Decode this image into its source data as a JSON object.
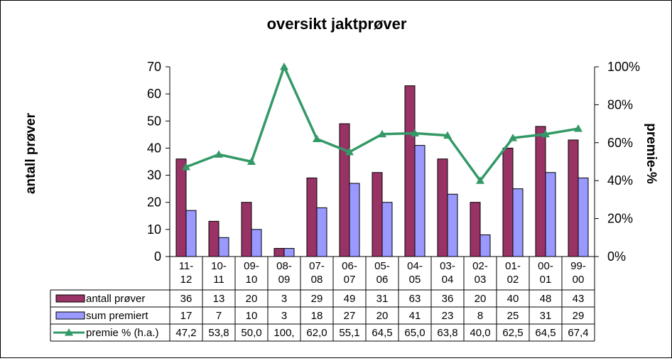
{
  "chart_data": {
    "type": "bar",
    "title": "oversikt jaktprøver",
    "ylabel": "antall prøver",
    "y2label": "premie-%",
    "ylim": [
      0,
      70
    ],
    "y2lim": [
      0,
      100
    ],
    "yticks": [
      "0",
      "10",
      "20",
      "30",
      "40",
      "50",
      "60",
      "70"
    ],
    "y2ticks": [
      "0%",
      "20%",
      "40%",
      "60%",
      "80%",
      "100%"
    ],
    "grid": false,
    "legend": "data-table",
    "categories": [
      [
        "11-",
        "12"
      ],
      [
        "10-",
        "11"
      ],
      [
        "09-",
        "10"
      ],
      [
        "08-",
        "09"
      ],
      [
        "07-",
        "08"
      ],
      [
        "06-",
        "07"
      ],
      [
        "05-",
        "06"
      ],
      [
        "04-",
        "05"
      ],
      [
        "03-",
        "04"
      ],
      [
        "02-",
        "03"
      ],
      [
        "01-",
        "02"
      ],
      [
        "00-",
        "01"
      ],
      [
        "99-",
        "00"
      ]
    ],
    "series": [
      {
        "name": "antall prøver",
        "type": "bar",
        "axis": "left",
        "color": "#993366",
        "values": [
          36,
          13,
          20,
          3,
          29,
          49,
          31,
          63,
          36,
          20,
          40,
          48,
          43
        ],
        "labels": [
          "36",
          "13",
          "20",
          "3",
          "29",
          "49",
          "31",
          "63",
          "36",
          "20",
          "40",
          "48",
          "43"
        ]
      },
      {
        "name": "sum premiert",
        "type": "bar",
        "axis": "left",
        "color": "#9999FF",
        "values": [
          17,
          7,
          10,
          3,
          18,
          27,
          20,
          41,
          23,
          8,
          25,
          31,
          29
        ],
        "labels": [
          "17",
          "7",
          "10",
          "3",
          "18",
          "27",
          "20",
          "41",
          "23",
          "8",
          "25",
          "31",
          "29"
        ]
      },
      {
        "name": "premie % (h.a.)",
        "type": "line",
        "axis": "right",
        "color": "#339966",
        "values": [
          47.2,
          53.8,
          50.0,
          100,
          62.0,
          55.1,
          64.5,
          65.0,
          63.8,
          40.0,
          62.5,
          64.5,
          67.4
        ],
        "labels": [
          "47,2",
          "53,8",
          "50,0",
          "100,",
          "62,0",
          "55,1",
          "64,5",
          "65,0",
          "63,8",
          "40,0",
          "62,5",
          "64,5",
          "67,4"
        ]
      }
    ]
  }
}
